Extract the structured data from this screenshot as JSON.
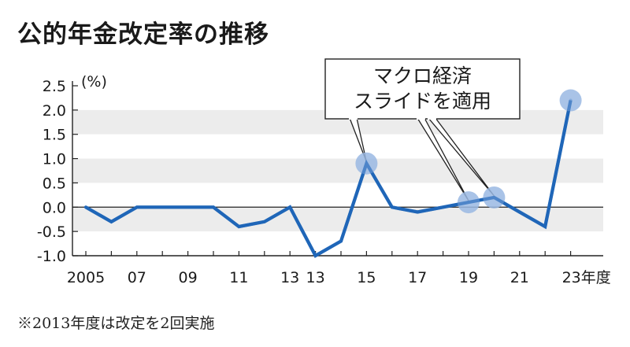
{
  "title": "公的年金改定率の推移",
  "footnote": "※2013年度は改定を2回実施",
  "chart_data": {
    "type": "line",
    "title": "公的年金改定率の推移",
    "ylabel": "(%)",
    "xlabel": "年度",
    "ylim": [
      -1.0,
      2.5
    ],
    "yticks": [
      2.5,
      2.0,
      1.5,
      1.0,
      0.5,
      0.0,
      -0.5,
      -1.0
    ],
    "ytick_labels": [
      "2.5",
      "2.0",
      "1.5",
      "1.0",
      "0.5",
      "0.0",
      "-0.5",
      "-1.0"
    ],
    "xticks": [
      {
        "label": "2005",
        "index": 0
      },
      {
        "label": "07",
        "index": 2
      },
      {
        "label": "09",
        "index": 4
      },
      {
        "label": "11",
        "index": 6
      },
      {
        "label": "13",
        "index": 8
      },
      {
        "label": "13",
        "index": 9
      },
      {
        "label": "15",
        "index": 11
      },
      {
        "label": "17",
        "index": 13
      },
      {
        "label": "19",
        "index": 15
      },
      {
        "label": "21",
        "index": 17
      },
      {
        "label": "23年度",
        "index": 19
      }
    ],
    "series": [
      {
        "x": [
          "2005",
          "2006",
          "2007",
          "2008",
          "2009",
          "2010",
          "2011",
          "2012",
          "2013",
          "2013",
          "2014",
          "2015",
          "2016",
          "2017",
          "2018",
          "2019",
          "2020",
          "2021",
          "2022",
          "2023"
        ],
        "values": [
          0.0,
          -0.3,
          0.0,
          0.0,
          0.0,
          0.0,
          -0.4,
          -0.3,
          0.0,
          -1.0,
          -0.7,
          0.9,
          0.0,
          -0.1,
          0.0,
          0.1,
          0.2,
          -0.1,
          -0.4,
          2.2
        ],
        "color": "#1f66b8"
      }
    ],
    "highlights": [
      {
        "x": "2015",
        "index": 11,
        "value": 0.9
      },
      {
        "x": "2019",
        "index": 15,
        "value": 0.1
      },
      {
        "x": "2020",
        "index": 16,
        "value": 0.2
      },
      {
        "x": "2023",
        "index": 19,
        "value": 2.2
      }
    ],
    "annotation": {
      "lines": [
        "マクロ経済",
        "スライドを適用"
      ],
      "points_to": [
        11,
        15,
        16
      ]
    },
    "grid": true,
    "band_colors": [
      "#ececec",
      "#ffffff"
    ],
    "line_color": "#1f66b8",
    "marker_color": "#9ab8e3"
  }
}
